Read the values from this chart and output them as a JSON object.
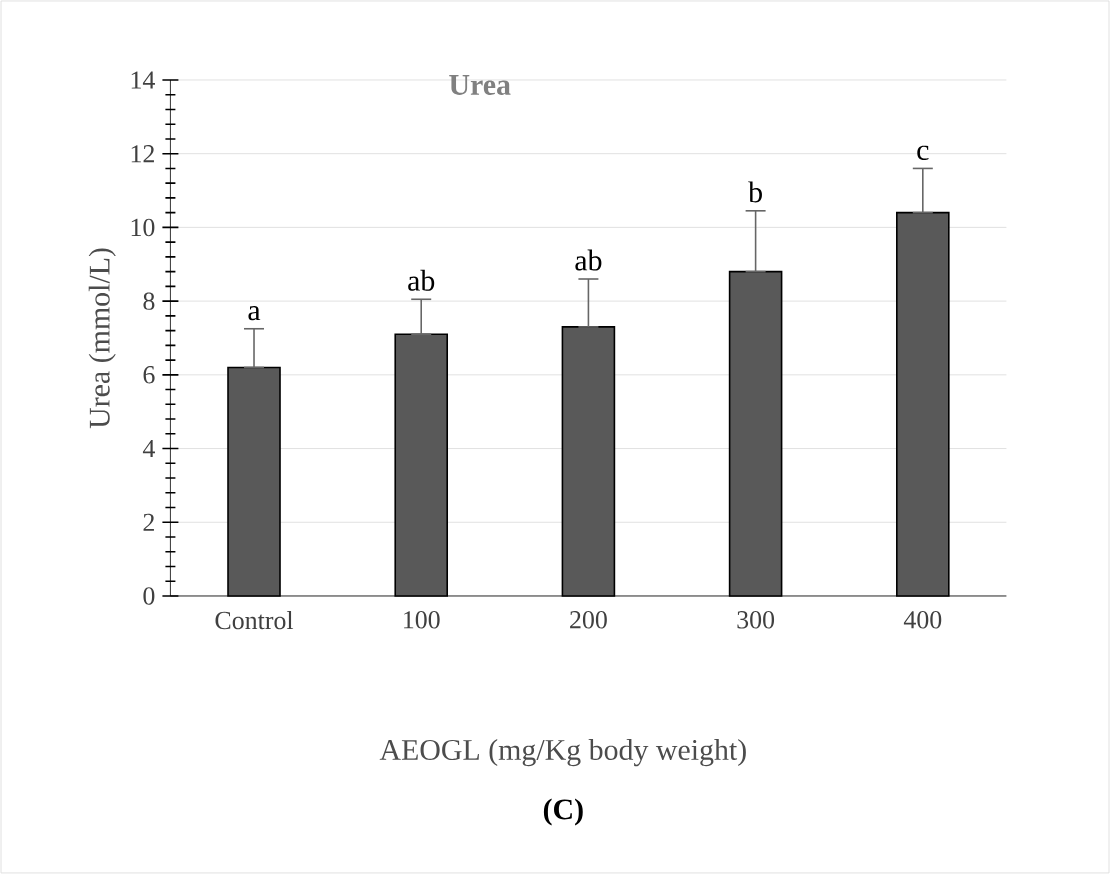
{
  "chart_data": {
    "type": "bar",
    "title": "Urea",
    "xlabel": "AEOGL (mg/Kg body weight)",
    "ylabel": "Urea (mmol/L)",
    "categories": [
      "Control",
      "100",
      "200",
      "300",
      "400"
    ],
    "values": [
      6.2,
      7.1,
      7.3,
      8.8,
      10.4
    ],
    "color": "#595959",
    "errors": [
      [
        6.2,
        7.25
      ],
      [
        7.1,
        8.05
      ],
      [
        7.3,
        8.6
      ],
      [
        8.8,
        10.45
      ],
      [
        10.4,
        11.6
      ]
    ],
    "ylim": [
      0,
      14
    ],
    "yticks": [
      0,
      2,
      4,
      6,
      8,
      10,
      12,
      14
    ],
    "grid": "y",
    "annotations": [
      {
        "text": "a",
        "x": "Control",
        "y": 7.25
      },
      {
        "text": "ab",
        "x": "100",
        "y": 8.05
      },
      {
        "text": "ab",
        "x": "200",
        "y": 8.6
      },
      {
        "text": "b",
        "x": "300",
        "y": 10.45
      },
      {
        "text": "c",
        "x": "400",
        "y": 11.6
      },
      "**(C)**"
    ]
  }
}
